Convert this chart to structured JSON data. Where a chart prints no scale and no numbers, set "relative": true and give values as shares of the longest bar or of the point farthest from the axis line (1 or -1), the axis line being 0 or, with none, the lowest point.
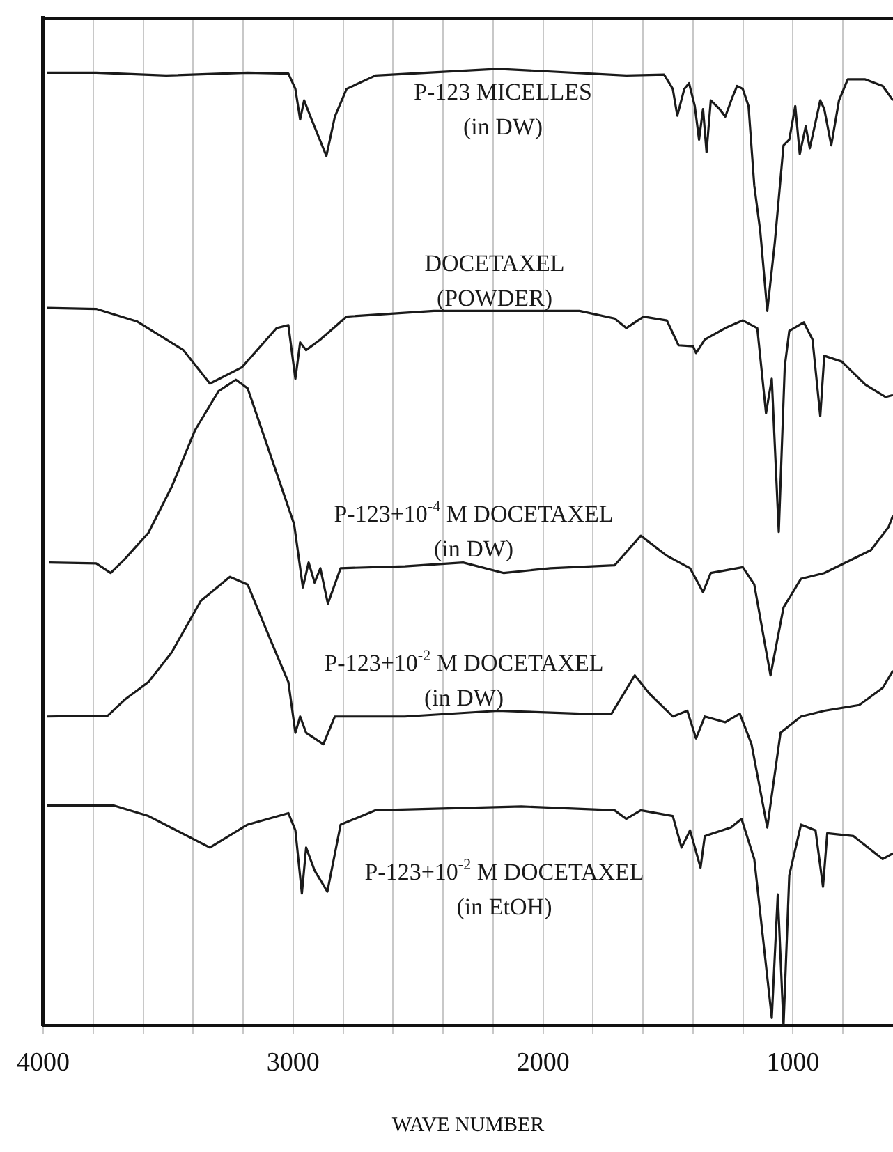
{
  "chart_data": {
    "type": "line",
    "xlabel": "WAVE NUMBER",
    "relative": true,
    "xlim": [
      4000,
      600
    ],
    "xticks": [
      4000,
      {
        "value": 3800,
        "label": null
      },
      {
        "value": 3600,
        "label": null
      },
      {
        "value": 3400,
        "label": null
      },
      {
        "value": 3200,
        "label": null
      },
      3000,
      {
        "value": 2800,
        "label": null
      },
      {
        "value": 2600,
        "label": null
      },
      {
        "value": 2400,
        "label": null
      },
      {
        "value": 2200,
        "label": null
      },
      2000,
      {
        "value": 1800,
        "label": null
      },
      {
        "value": 1600,
        "label": null
      },
      {
        "value": 1400,
        "label": null
      },
      {
        "value": 1200,
        "label": null
      },
      1000,
      {
        "value": 800,
        "label": null
      }
    ],
    "grid": "x",
    "legend": false,
    "marker": "none",
    "line_style": "solid",
    "series": [
      {
        "name": "P-123 MICELLES\n(in DW)",
        "color": "#1a1a1a",
        "x": [
          3986,
          3788,
          3508,
          3182,
          3019,
          2991,
          2972,
          2956,
          2926,
          2867,
          2833,
          2786,
          2670,
          2180,
          1667,
          1516,
          1481,
          1463,
          1435,
          1416,
          1393,
          1376,
          1360,
          1346,
          1329,
          1294,
          1271,
          1243,
          1224,
          1201,
          1178,
          1155,
          1131,
          1103,
          1073,
          1038,
          1015,
          991,
          973,
          949,
          933,
          910,
          891,
          875,
          847,
          816,
          781,
          711,
          641,
          600
        ],
        "values": [
          0.996,
          0.996,
          0.993,
          0.996,
          0.995,
          0.979,
          0.947,
          0.967,
          0.947,
          0.909,
          0.95,
          0.979,
          0.993,
          1.0,
          0.993,
          0.994,
          0.979,
          0.951,
          0.979,
          0.985,
          0.961,
          0.926,
          0.958,
          0.913,
          0.967,
          0.958,
          0.95,
          0.97,
          0.982,
          0.979,
          0.961,
          0.878,
          0.83,
          0.747,
          0.818,
          0.92,
          0.926,
          0.961,
          0.911,
          0.94,
          0.917,
          0.944,
          0.967,
          0.958,
          0.92,
          0.967,
          0.989,
          0.989,
          0.982,
          0.967
        ]
      },
      {
        "name": "DOCETAXEL\n(POWDER)",
        "color": "#1a1a1a",
        "x": [
          3986,
          3788,
          3625,
          3439,
          3333,
          3205,
          3066,
          3019,
          2991,
          2972,
          2948,
          2891,
          2786,
          2437,
          1854,
          1714,
          1667,
          1598,
          1505,
          1458,
          1400,
          1388,
          1353,
          1271,
          1201,
          1143,
          1108,
          1085,
          1057,
          1033,
          1015,
          957,
          922,
          891,
          875,
          805,
          711,
          630,
          600
        ],
        "values": [
          0.75,
          0.749,
          0.736,
          0.706,
          0.671,
          0.688,
          0.729,
          0.732,
          0.676,
          0.714,
          0.706,
          0.717,
          0.741,
          0.747,
          0.747,
          0.739,
          0.729,
          0.741,
          0.737,
          0.711,
          0.71,
          0.703,
          0.717,
          0.729,
          0.737,
          0.729,
          0.64,
          0.676,
          0.516,
          0.689,
          0.726,
          0.735,
          0.717,
          0.637,
          0.7,
          0.694,
          0.67,
          0.657,
          0.659
        ]
      },
      {
        "name": "P-123+10$^{-4}$ M DOCETAXEL\n(in DW)",
        "color": "#1a1a1a",
        "x": [
          3975,
          3788,
          3730,
          3672,
          3579,
          3486,
          3393,
          3299,
          3229,
          3182,
          3089,
          2996,
          2961,
          2938,
          2914,
          2891,
          2861,
          2810,
          2553,
          2320,
          2157,
          1971,
          1714,
          1609,
          1505,
          1412,
          1360,
          1329,
          1201,
          1155,
          1090,
          1038,
          968,
          875,
          781,
          688,
          618,
          600
        ],
        "values": [
          0.484,
          0.483,
          0.473,
          0.488,
          0.515,
          0.563,
          0.622,
          0.663,
          0.675,
          0.666,
          0.595,
          0.524,
          0.458,
          0.484,
          0.463,
          0.478,
          0.441,
          0.478,
          0.48,
          0.484,
          0.473,
          0.478,
          0.481,
          0.512,
          0.491,
          0.478,
          0.453,
          0.473,
          0.479,
          0.461,
          0.366,
          0.437,
          0.467,
          0.473,
          0.485,
          0.497,
          0.521,
          0.533
        ]
      },
      {
        "name": "P-123+10$^{-2}$ M DOCETAXEL\n(in DW)",
        "color": "#1a1a1a",
        "x": [
          3986,
          3741,
          3672,
          3579,
          3486,
          3369,
          3253,
          3182,
          3089,
          3019,
          2991,
          2972,
          2948,
          2879,
          2833,
          2553,
          2180,
          1854,
          1726,
          1633,
          1575,
          1481,
          1423,
          1388,
          1353,
          1271,
          1213,
          1166,
          1103,
          1050,
          968,
          875,
          735,
          641,
          600
        ],
        "values": [
          0.323,
          0.324,
          0.341,
          0.359,
          0.39,
          0.444,
          0.469,
          0.461,
          0.402,
          0.359,
          0.306,
          0.323,
          0.306,
          0.294,
          0.323,
          0.323,
          0.329,
          0.326,
          0.326,
          0.366,
          0.347,
          0.323,
          0.329,
          0.3,
          0.323,
          0.317,
          0.326,
          0.294,
          0.207,
          0.306,
          0.323,
          0.329,
          0.335,
          0.353,
          0.371
        ]
      },
      {
        "name": "P-123+10$^{-2}$ M DOCETAXEL\n(in EtOH)",
        "color": "#1a1a1a",
        "x": [
          3986,
          3718,
          3579,
          3333,
          3182,
          3019,
          2991,
          2965,
          2948,
          2914,
          2863,
          2810,
          2670,
          2087,
          1714,
          1667,
          1609,
          1481,
          1446,
          1412,
          1370,
          1353,
          1248,
          1206,
          1155,
          1085,
          1061,
          1038,
          1015,
          968,
          910,
          880,
          863,
          758,
          641,
          600
        ],
        "values": [
          0.23,
          0.23,
          0.219,
          0.186,
          0.21,
          0.222,
          0.204,
          0.138,
          0.186,
          0.162,
          0.14,
          0.21,
          0.225,
          0.229,
          0.225,
          0.216,
          0.225,
          0.219,
          0.186,
          0.204,
          0.165,
          0.198,
          0.207,
          0.216,
          0.174,
          0.008,
          0.137,
          0.0,
          0.157,
          0.21,
          0.204,
          0.145,
          0.201,
          0.198,
          0.174,
          0.18
        ]
      }
    ]
  }
}
